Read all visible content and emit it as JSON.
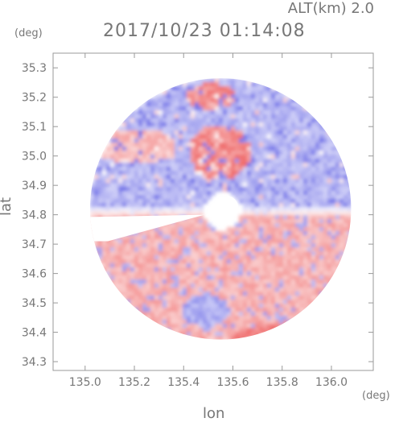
{
  "header": {
    "title": "2017/10/23 01:14:08",
    "alt_label": "ALT(km)  2.0"
  },
  "chart_data": {
    "type": "heatmap",
    "title": "2017/10/23 01:14:08",
    "annotation": "ALT(km)  2.0",
    "xlabel": "lon",
    "ylabel": "lat",
    "x_unit": "(deg)",
    "y_unit": "(deg)",
    "xlim": [
      134.87,
      136.17
    ],
    "ylim": [
      34.27,
      35.35
    ],
    "x_ticks": [
      135.0,
      135.2,
      135.4,
      135.6,
      135.8,
      136.0
    ],
    "x_tick_labels": [
      "135.0",
      "135.2",
      "135.4",
      "135.6",
      "135.8",
      "136.0"
    ],
    "y_ticks": [
      34.3,
      34.4,
      34.5,
      34.6,
      34.7,
      34.8,
      34.9,
      35.0,
      35.1,
      35.2,
      35.3
    ],
    "y_tick_labels": [
      "34.3",
      "34.4",
      "34.5",
      "34.6",
      "34.7",
      "34.8",
      "34.9",
      "35.0",
      "35.1",
      "35.2",
      "35.3"
    ],
    "radar_center": {
      "lon": 135.55,
      "lat": 34.82
    },
    "radar_range_deg": 0.53,
    "colormap": {
      "negative": "#6a6ae6",
      "neutral": "#ffffff",
      "positive": "#ee5f5f"
    },
    "regions": [
      {
        "name": "north-receding",
        "sign": "negative",
        "lat_range": [
          34.82,
          35.35
        ]
      },
      {
        "name": "south-approaching",
        "sign": "positive",
        "lat_range": [
          34.27,
          34.82
        ]
      },
      {
        "name": "north-core-positive",
        "sign": "positive",
        "center": [
          135.55,
          35.03
        ]
      }
    ],
    "grid": false
  }
}
